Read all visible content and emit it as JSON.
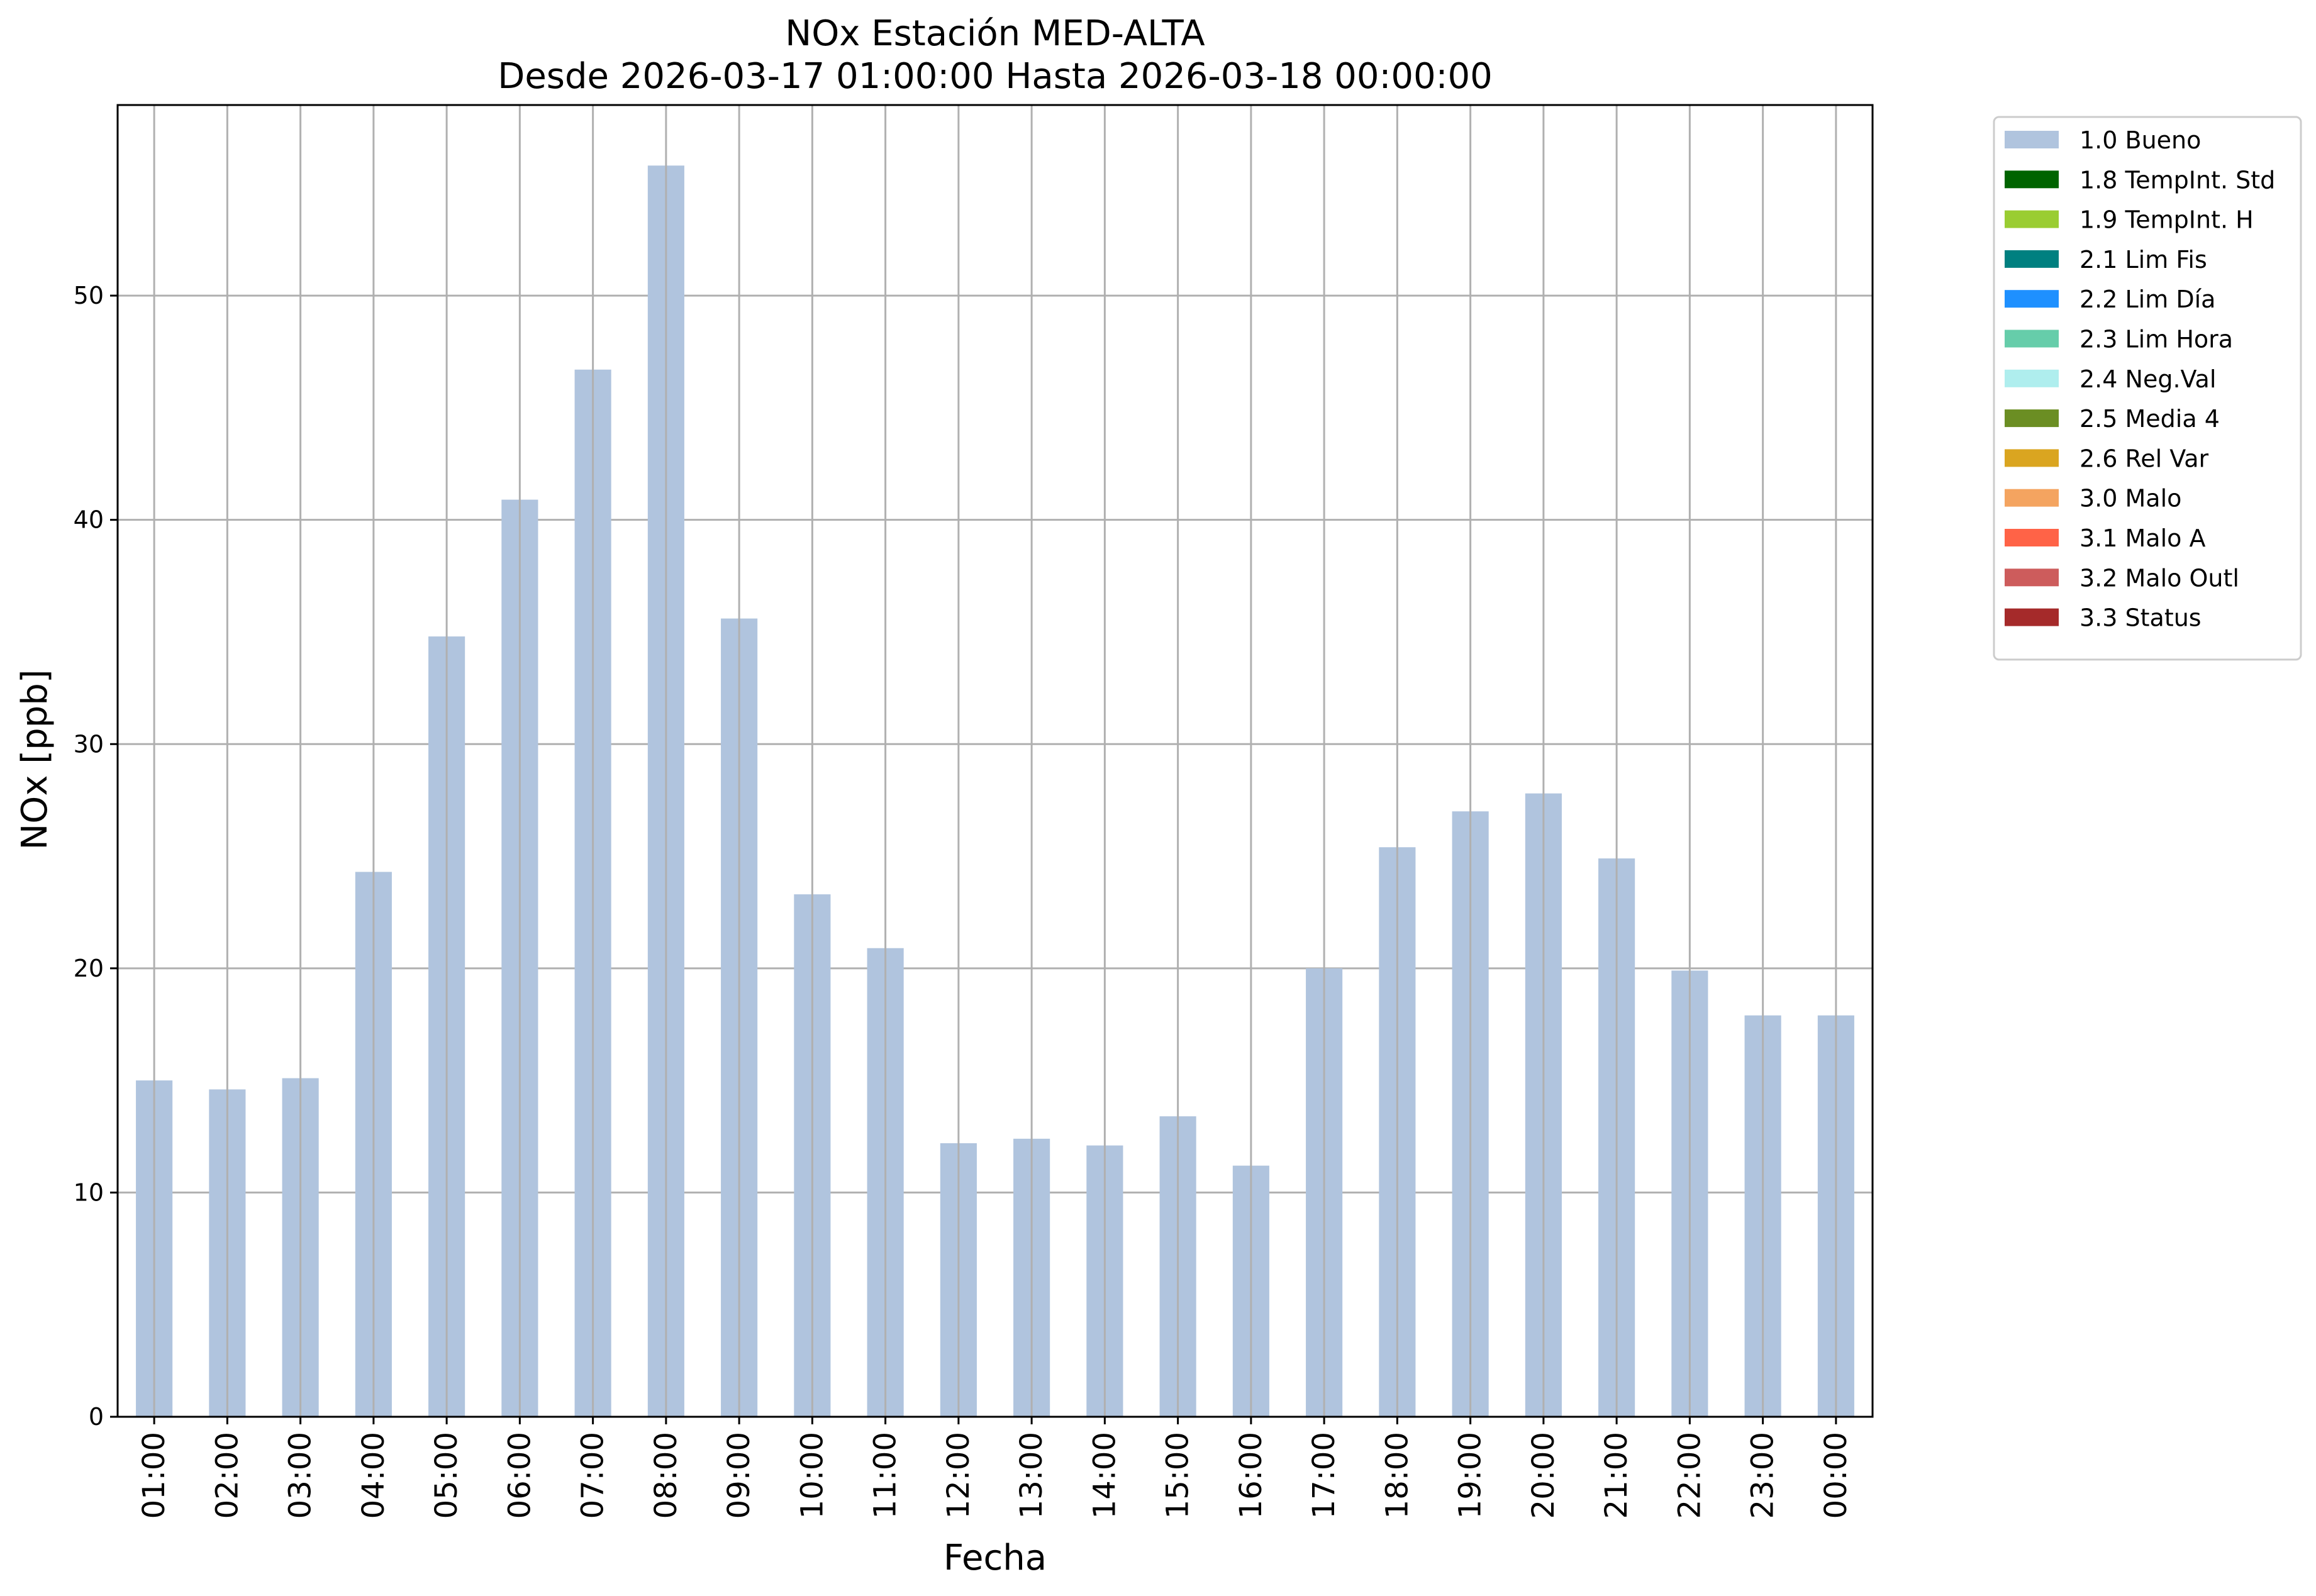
{
  "chart_data": {
    "type": "bar",
    "title": "NOx Estación MED-ALTA",
    "subtitle": "Desde 2026-03-17 01:00:00 Hasta 2026-03-18 00:00:00",
    "xlabel": "Fecha",
    "ylabel": "NOx [ppb]",
    "ylim": [
      0,
      58.5
    ],
    "yticks": [
      0,
      10,
      20,
      30,
      40,
      50
    ],
    "grid": true,
    "legend_position": "outside-right",
    "bar_color": "#b0c4de",
    "grid_color": "#b0b0b0",
    "categories": [
      "01:00",
      "02:00",
      "03:00",
      "04:00",
      "05:00",
      "06:00",
      "07:00",
      "08:00",
      "09:00",
      "10:00",
      "11:00",
      "12:00",
      "13:00",
      "14:00",
      "15:00",
      "16:00",
      "17:00",
      "18:00",
      "19:00",
      "20:00",
      "21:00",
      "22:00",
      "23:00",
      "00:00"
    ],
    "series": [
      {
        "name": "1.0 Bueno",
        "color": "#b0c4de",
        "values": [
          15.0,
          14.6,
          15.1,
          24.3,
          34.8,
          40.9,
          46.7,
          55.8,
          35.6,
          23.3,
          20.9,
          12.2,
          12.4,
          12.1,
          13.4,
          11.2,
          20.0,
          25.4,
          27.0,
          27.8,
          24.9,
          19.9,
          17.9,
          17.9
        ]
      }
    ],
    "legend": [
      {
        "label": "1.0 Bueno",
        "color": "#b0c4de"
      },
      {
        "label": "1.8 TempInt. Std",
        "color": "#006400"
      },
      {
        "label": "1.9 TempInt. H",
        "color": "#9acd32"
      },
      {
        "label": "2.1 Lim Fis",
        "color": "#008080"
      },
      {
        "label": "2.2 Lim Día",
        "color": "#1e90ff"
      },
      {
        "label": "2.3 Lim Hora",
        "color": "#66cdaa"
      },
      {
        "label": "2.4 Neg.Val",
        "color": "#afeeee"
      },
      {
        "label": "2.5 Media 4",
        "color": "#6b8e23"
      },
      {
        "label": "2.6 Rel Var",
        "color": "#daa520"
      },
      {
        "label": "3.0 Malo",
        "color": "#f4a460"
      },
      {
        "label": "3.1 Malo A",
        "color": "#ff6347"
      },
      {
        "label": "3.2 Malo Outl",
        "color": "#cd5c5c"
      },
      {
        "label": "3.3 Status",
        "color": "#a52a2a"
      }
    ]
  }
}
